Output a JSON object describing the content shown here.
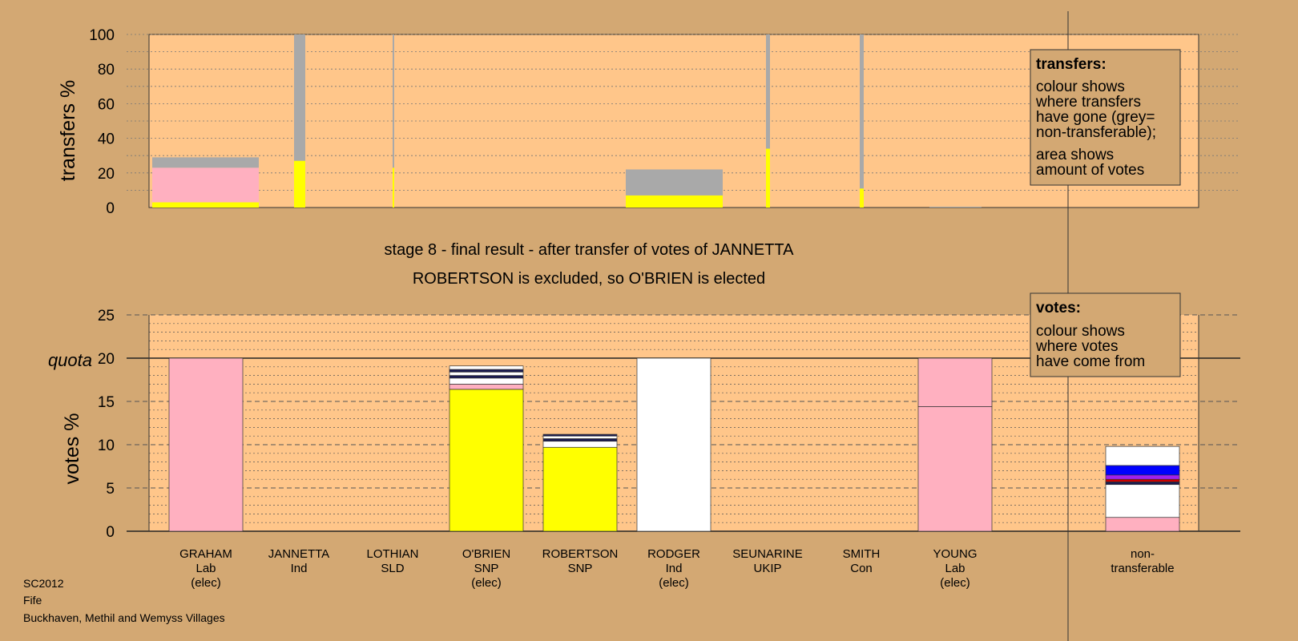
{
  "colors": {
    "background": "#d3a873",
    "plot_bg": "#ffc68a",
    "Lab": "#ffb0c0",
    "SNP": "#ffff00",
    "Ind": "#ffffff",
    "non_transferable": "#a9a9a9",
    "dark": "#1a1a50",
    "blue": "#0000ff",
    "red": "#cc0000",
    "purple": "#a020f0"
  },
  "title": {
    "line1": "stage 8 - final result - after transfer of votes of JANNETTA",
    "line2": "ROBERTSON is excluded, so O'BRIEN is elected"
  },
  "footer": {
    "line1": "SC2012",
    "line2": "Fife",
    "line3": "Buckhaven, Methil and Wemyss Villages"
  },
  "legend_transfers": {
    "title": "transfers:",
    "lines": [
      "colour shows",
      "where transfers",
      "have gone (grey=",
      "non-transferable);",
      "area shows",
      "amount of votes"
    ]
  },
  "legend_votes": {
    "title": "votes:",
    "lines": [
      "colour shows",
      "where votes",
      "have come from"
    ]
  },
  "chart_data": [
    {
      "type": "bar",
      "ylabel": "transfers %",
      "ylim": [
        0,
        100
      ],
      "yticks": [
        0,
        20,
        40,
        60,
        80,
        100
      ],
      "grid": true,
      "bars": [
        {
          "candidate": "GRAHAM",
          "segments": [
            {
              "party": "SNP",
              "value": 3
            },
            {
              "party": "Lab",
              "value": 20
            },
            {
              "party": "non_transferable",
              "value": 6
            }
          ]
        },
        {
          "candidate": "JANNETTA",
          "segments": [
            {
              "party": "SNP",
              "value": 27
            },
            {
              "party": "non_transferable",
              "value": 73
            }
          ]
        },
        {
          "candidate": "LOTHIAN",
          "segments": [
            {
              "party": "SNP",
              "value": 23
            },
            {
              "party": "non_transferable",
              "value": 77
            }
          ]
        },
        {
          "candidate": "RODGER",
          "segments": [
            {
              "party": "SNP",
              "value": 7
            },
            {
              "party": "non_transferable",
              "value": 15
            }
          ]
        },
        {
          "candidate": "SEUNARINE",
          "segments": [
            {
              "party": "SNP",
              "value": 34
            },
            {
              "party": "non_transferable",
              "value": 66
            }
          ]
        },
        {
          "candidate": "SMITH",
          "segments": [
            {
              "party": "SNP",
              "value": 11
            },
            {
              "party": "non_transferable",
              "value": 89
            }
          ]
        },
        {
          "candidate": "YOUNG",
          "segments": [
            {
              "party": "non_transferable",
              "value": 0.5
            }
          ]
        }
      ]
    },
    {
      "type": "bar",
      "ylabel": "votes %",
      "ylim": [
        0,
        25
      ],
      "yticks": [
        0,
        5,
        10,
        15,
        20,
        25
      ],
      "quota": 20,
      "quota_label": "quota",
      "categories": [
        {
          "name": "GRAHAM",
          "party": "Lab",
          "status": "(elec)"
        },
        {
          "name": "JANNETTA",
          "party": "Ind",
          "status": ""
        },
        {
          "name": "LOTHIAN",
          "party": "SLD",
          "status": ""
        },
        {
          "name": "O'BRIEN",
          "party": "SNP",
          "status": "(elec)"
        },
        {
          "name": "ROBERTSON",
          "party": "SNP",
          "status": ""
        },
        {
          "name": "RODGER",
          "party": "Ind",
          "status": "(elec)"
        },
        {
          "name": "SEUNARINE",
          "party": "UKIP",
          "status": ""
        },
        {
          "name": "SMITH",
          "party": "Con",
          "status": ""
        },
        {
          "name": "YOUNG",
          "party": "Lab",
          "status": "(elec)"
        }
      ],
      "nontransferable_label": [
        "non-",
        "transferable"
      ],
      "stacks": [
        [
          {
            "c": "Lab",
            "v": 20
          }
        ],
        [],
        [],
        [
          {
            "c": "SNP",
            "v": 16.4
          },
          {
            "c": "Lab",
            "v": 0.6
          },
          {
            "c": "Ind",
            "v": 0.7
          },
          {
            "c": "dark",
            "v": 0.3
          },
          {
            "c": "Ind",
            "v": 0.4
          },
          {
            "c": "dark",
            "v": 0.3
          },
          {
            "c": "Ind",
            "v": 0.4
          }
        ],
        [
          {
            "c": "SNP",
            "v": 9.7
          },
          {
            "c": "Ind",
            "v": 0.7
          },
          {
            "c": "dark",
            "v": 0.3
          },
          {
            "c": "Ind",
            "v": 0.3
          },
          {
            "c": "dark",
            "v": 0.2
          }
        ],
        [
          {
            "c": "Ind",
            "v": 20
          }
        ],
        [],
        [],
        [
          {
            "c": "Lab",
            "v": 14.4
          },
          {
            "c": "Lab",
            "v": 5.6
          }
        ]
      ],
      "nontransferable_stack": [
        {
          "c": "Lab",
          "v": 1.6
        },
        {
          "c": "Ind",
          "v": 3.8
        },
        {
          "c": "dark",
          "v": 0.3
        },
        {
          "c": "red",
          "v": 0.3
        },
        {
          "c": "purple",
          "v": 0.5
        },
        {
          "c": "blue",
          "v": 1.1
        },
        {
          "c": "Ind",
          "v": 2.2
        }
      ]
    }
  ]
}
